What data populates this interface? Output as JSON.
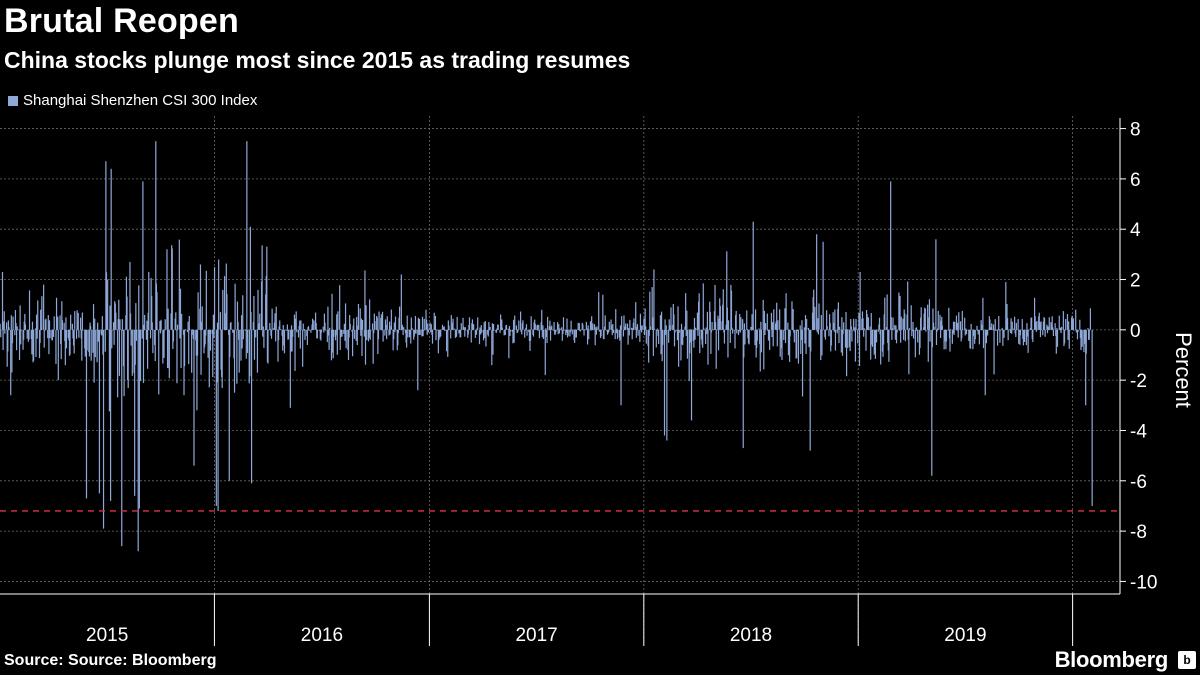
{
  "title": "Brutal Reopen",
  "subtitle": "China stocks plunge most since 2015 as trading resumes",
  "source": "Source: Source: Bloomberg",
  "brand": "Bloomberg",
  "colors": {
    "bars": "#8ea8d8",
    "reference_line": "#d9344a",
    "grid": "#6a6a6a",
    "background": "#000000",
    "text": "#ffffff"
  },
  "chart_data": {
    "type": "bar",
    "title": "Brutal Reopen",
    "subtitle": "China stocks plunge most since 2015 as trading resumes",
    "ylabel": "Percent",
    "ylim": [
      -10.5,
      8.5
    ],
    "yticks": [
      8,
      6,
      4,
      2,
      0,
      -2,
      -4,
      -6,
      -8,
      -10
    ],
    "x_range": [
      "2015-01-01",
      "2020-02-03"
    ],
    "x_labels": [
      "2015",
      "2016",
      "2017",
      "2018",
      "2019"
    ],
    "grid": true,
    "legend_position": "top-left",
    "reference_line": {
      "y": -7.2,
      "style": "dashed"
    },
    "series": [
      {
        "name": "Shanghai Shenzhen CSI 300 Index",
        "frequency": "daily",
        "points": [
          [
            "2015-01-05",
            2.3
          ],
          [
            "2015-01-19",
            -2.6
          ],
          [
            "2015-03-16",
            1.8
          ],
          [
            "2015-05-28",
            -6.7
          ],
          [
            "2015-06-19",
            -6.5
          ],
          [
            "2015-06-26",
            -7.9
          ],
          [
            "2015-06-30",
            6.7
          ],
          [
            "2015-07-08",
            -6.8
          ],
          [
            "2015-07-09",
            6.4
          ],
          [
            "2015-07-27",
            -8.6
          ],
          [
            "2015-08-18",
            -6.6
          ],
          [
            "2015-08-24",
            -8.8
          ],
          [
            "2015-08-26",
            -7.1
          ],
          [
            "2015-09-01",
            5.9
          ],
          [
            "2015-10-12",
            3.2
          ],
          [
            "2015-11-27",
            -5.4
          ],
          [
            "2016-01-04",
            -7.0
          ],
          [
            "2016-01-07",
            -7.2
          ],
          [
            "2016-01-26",
            -6.0
          ],
          [
            "2016-03-02",
            4.1
          ],
          [
            "2016-03-04",
            -6.1
          ],
          [
            "2016-05-09",
            -3.1
          ],
          [
            "2016-11-14",
            2.2
          ],
          [
            "2016-12-12",
            -2.4
          ],
          [
            "2017-04-17",
            -1.4
          ],
          [
            "2017-07-17",
            -1.8
          ],
          [
            "2017-10-16",
            1.5
          ],
          [
            "2017-11-23",
            -3.0
          ],
          [
            "2017-12-18",
            1.1
          ],
          [
            "2018-01-15",
            1.7
          ],
          [
            "2018-02-05",
            -4.2
          ],
          [
            "2018-02-09",
            -4.4
          ],
          [
            "2018-03-23",
            -3.6
          ],
          [
            "2018-06-19",
            -4.7
          ],
          [
            "2018-07-06",
            4.3
          ],
          [
            "2018-10-11",
            -4.8
          ],
          [
            "2018-10-22",
            3.8
          ],
          [
            "2018-11-02",
            3.5
          ],
          [
            "2019-01-04",
            2.3
          ],
          [
            "2019-02-25",
            5.9
          ],
          [
            "2019-05-06",
            -5.8
          ],
          [
            "2019-05-13",
            3.6
          ],
          [
            "2019-08-05",
            -2.6
          ],
          [
            "2019-09-09",
            1.9
          ],
          [
            "2020-01-23",
            -3.0
          ],
          [
            "2020-02-03",
            -7.0
          ]
        ]
      }
    ]
  }
}
